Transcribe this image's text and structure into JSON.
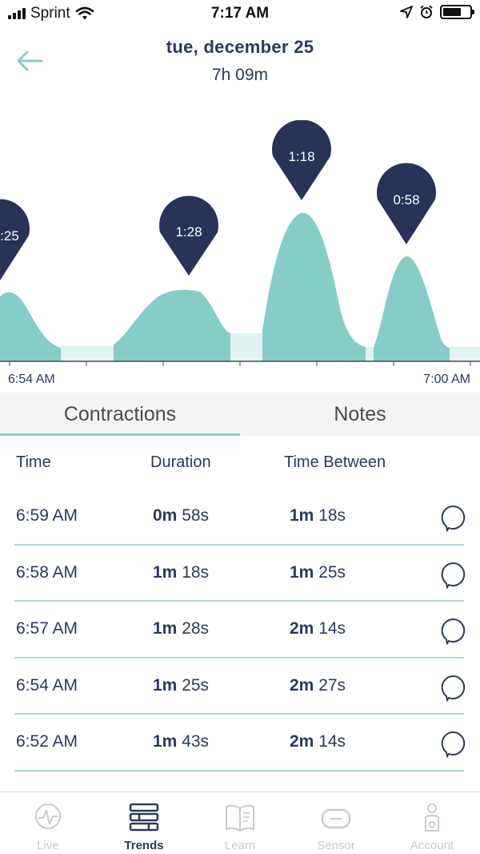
{
  "status_bar": {
    "carrier": "Sprint",
    "time": "7:17 AM",
    "icons": [
      "signal-icon",
      "wifi-icon",
      "location-icon",
      "alarm-icon",
      "battery-icon"
    ]
  },
  "header": {
    "date": "tue, december 25",
    "total": "7h 09m"
  },
  "chart_data": {
    "type": "area",
    "x_start_label": "6:54 AM",
    "x_end_label": "7:00 AM",
    "markers": [
      {
        "label": ":25"
      },
      {
        "label": "1:28"
      },
      {
        "label": "1:18"
      },
      {
        "label": "0:58"
      }
    ],
    "colors": {
      "fill": "#86cdc8",
      "gap_fill": "#dff3f1",
      "marker": "#283358"
    }
  },
  "tabs": [
    {
      "label": "Contractions",
      "active": true
    },
    {
      "label": "Notes",
      "active": false
    }
  ],
  "table": {
    "headers": {
      "time": "Time",
      "duration": "Duration",
      "between": "Time Between"
    },
    "rows": [
      {
        "time": "6:59 AM",
        "dur_m": "0m",
        "dur_s": "58s",
        "btw_m": "1m",
        "btw_s": "18s"
      },
      {
        "time": "6:58 AM",
        "dur_m": "1m",
        "dur_s": "18s",
        "btw_m": "1m",
        "btw_s": "25s"
      },
      {
        "time": "6:57 AM",
        "dur_m": "1m",
        "dur_s": "28s",
        "btw_m": "2m",
        "btw_s": "14s"
      },
      {
        "time": "6:54 AM",
        "dur_m": "1m",
        "dur_s": "25s",
        "btw_m": "2m",
        "btw_s": "27s"
      },
      {
        "time": "6:52 AM",
        "dur_m": "1m",
        "dur_s": "43s",
        "btw_m": "2m",
        "btw_s": "14s"
      }
    ]
  },
  "nav": [
    {
      "label": "Live",
      "icon": "heart-pulse-icon",
      "active": false
    },
    {
      "label": "Trends",
      "icon": "trends-icon",
      "active": true
    },
    {
      "label": "Learn",
      "icon": "book-icon",
      "active": false
    },
    {
      "label": "Sensor",
      "icon": "sensor-icon",
      "active": false
    },
    {
      "label": "Account",
      "icon": "account-icon",
      "active": false
    }
  ],
  "theme": {
    "accent": "#86cdc8",
    "navy": "#2b3a5a",
    "muted": "#c5c9d0"
  }
}
